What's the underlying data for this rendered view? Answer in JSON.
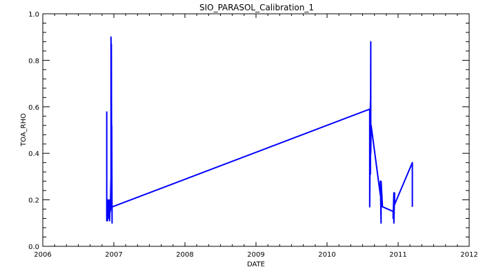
{
  "chart_data": {
    "type": "line",
    "title": "SIO_PARASOL_Calibration_1",
    "xlabel": "DATE",
    "ylabel": "TOA_RHO",
    "xlim": [
      2006,
      2012
    ],
    "ylim": [
      0.0,
      1.0
    ],
    "grid": false,
    "legend": "none",
    "x_ticks": [
      "2006",
      "2007",
      "2008",
      "2009",
      "2010",
      "2011",
      "2012"
    ],
    "x_tick_values": [
      2006,
      2007,
      2008,
      2009,
      2010,
      2011,
      2012
    ],
    "y_ticks": [
      "0.0",
      "0.2",
      "0.4",
      "0.6",
      "0.8",
      "1.0"
    ],
    "y_tick_values": [
      0.0,
      0.2,
      0.4,
      0.6,
      0.8,
      1.0
    ],
    "line_color": "#0000ff",
    "series": [
      {
        "x": [
          2006.9,
          2006.9,
          2006.91,
          2006.91,
          2006.92,
          2006.92,
          2006.93,
          2006.93,
          2006.94,
          2006.94,
          2006.95,
          2006.95,
          2006.96,
          2006.96,
          2006.965,
          2006.965,
          2006.97,
          2006.97,
          2006.975,
          2006.975,
          2006.98,
          2006.98,
          2010.6,
          2010.6,
          2010.61,
          2010.61,
          2010.615,
          2010.615,
          2010.62,
          2010.75,
          2010.75,
          2010.76,
          2010.76,
          2010.78,
          2010.93,
          2010.93,
          2010.94,
          2010.94,
          2010.95,
          2010.95,
          2011.2,
          2011.2
        ],
        "y": [
          0.58,
          0.11,
          0.2,
          0.11,
          0.19,
          0.12,
          0.2,
          0.13,
          0.18,
          0.11,
          0.2,
          0.15,
          0.3,
          0.9,
          0.16,
          0.87,
          0.17,
          0.52,
          0.1,
          0.17,
          0.17,
          0.17,
          0.59,
          0.17,
          0.62,
          0.31,
          0.88,
          0.4,
          0.52,
          0.22,
          0.28,
          0.1,
          0.28,
          0.17,
          0.15,
          0.12,
          0.23,
          0.1,
          0.23,
          0.18,
          0.36,
          0.17
        ]
      }
    ]
  }
}
